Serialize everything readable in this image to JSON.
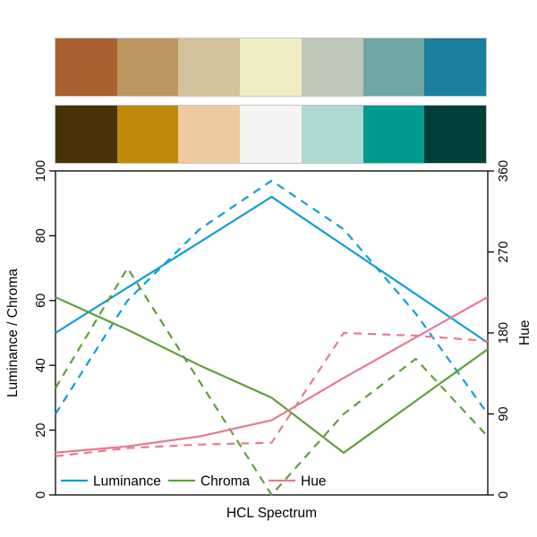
{
  "palettes": {
    "top": [
      "#A9622F",
      "#BD975F",
      "#D2C39B",
      "#F0ECC3",
      "#BEC8B7",
      "#6FA6A3",
      "#1B7F9E"
    ],
    "bottom": [
      "#473305",
      "#BE8A0C",
      "#F0CA9F",
      "#F5F4F2",
      "#ACD9D1",
      "#009B90",
      "#003F39"
    ]
  },
  "chart_data": {
    "type": "line",
    "title": "",
    "xlabel": "HCL Spectrum",
    "x": [
      1,
      2,
      3,
      4,
      5,
      6,
      7
    ],
    "left_axis": {
      "label": "Luminance / Chroma",
      "range": [
        0,
        100
      ],
      "ticks": [
        0,
        20,
        40,
        60,
        80,
        100
      ]
    },
    "right_axis": {
      "label": "Hue",
      "range": [
        0,
        360
      ],
      "ticks": [
        0,
        90,
        180,
        270,
        360
      ]
    },
    "grid": false,
    "legend_position": "bottom-inside",
    "series": [
      {
        "id": "luminance-palette1",
        "name": "Luminance",
        "palette": 1,
        "style": "solid",
        "axis": "left",
        "color": "#109DD8",
        "values": [
          50,
          64,
          78,
          92,
          77,
          62,
          47
        ]
      },
      {
        "id": "luminance-palette2",
        "name": "Luminance",
        "palette": 2,
        "style": "dashed",
        "axis": "left",
        "color": "#109DD8",
        "values": [
          25,
          60,
          82,
          97,
          82,
          56,
          25
        ]
      },
      {
        "id": "chroma-palette1",
        "name": "Chroma",
        "palette": 1,
        "style": "solid",
        "axis": "left",
        "color": "#5FA038",
        "values": [
          61,
          51,
          40,
          30,
          13,
          29,
          45
        ]
      },
      {
        "id": "chroma-palette2",
        "name": "Chroma",
        "palette": 2,
        "style": "dashed",
        "axis": "left",
        "color": "#5FA038",
        "values": [
          33,
          70,
          35,
          0,
          25,
          42,
          18
        ]
      },
      {
        "id": "hue-palette1",
        "name": "Hue",
        "palette": 1,
        "style": "solid",
        "axis": "right",
        "color": "#E8798E",
        "values": [
          47,
          54,
          65,
          83,
          130,
          175,
          220
        ]
      },
      {
        "id": "hue-palette2",
        "name": "Hue",
        "palette": 2,
        "style": "dashed",
        "axis": "right",
        "color": "#E8798E",
        "values": [
          43,
          52,
          56,
          58,
          180,
          177,
          171
        ]
      }
    ],
    "legend": [
      {
        "label": "Luminance",
        "color": "#109DD8"
      },
      {
        "label": "Chroma",
        "color": "#5FA038"
      },
      {
        "label": "Hue",
        "color": "#E8798E"
      }
    ]
  }
}
